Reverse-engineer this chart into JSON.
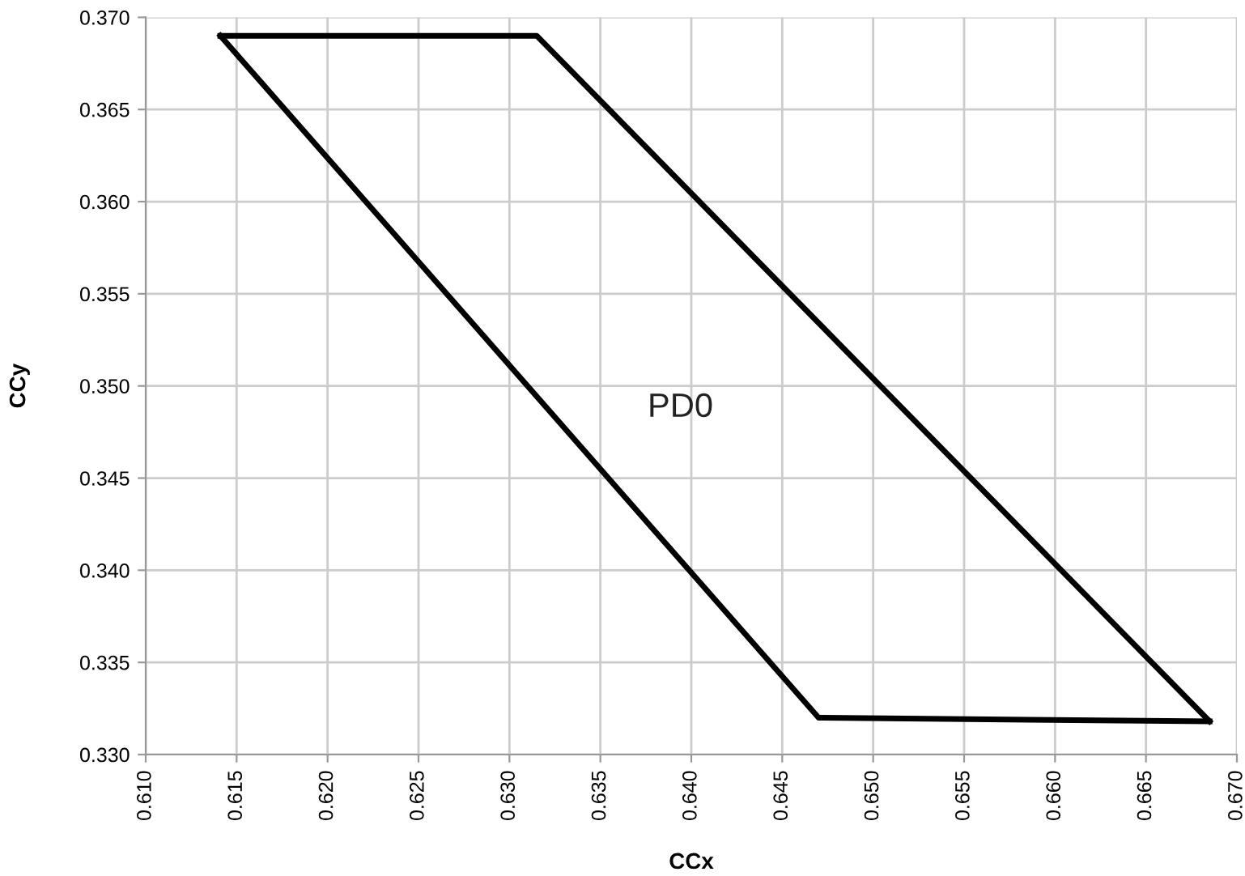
{
  "chart_data": {
    "type": "line",
    "xlabel": "CCx",
    "ylabel": "CCy",
    "series": [
      {
        "color": "#000000",
        "x": [
          0.6141,
          0.6315,
          0.6685
        ],
        "values": [
          0.369,
          0.369,
          0.3318
        ]
      },
      {
        "color": "#000000",
        "x": [
          0.6141,
          0.647,
          0.6685
        ],
        "values": [
          0.369,
          0.332,
          0.3318
        ]
      }
    ],
    "annotations": [
      "PD0"
    ],
    "xlim": [
      0.61,
      0.67
    ],
    "xticks": [
      {
        "value": 0.61,
        "label": "0.610"
      },
      {
        "value": 0.615,
        "label": "0.615"
      },
      {
        "value": 0.62,
        "label": "0.620"
      },
      {
        "value": 0.625,
        "label": "0.625"
      },
      {
        "value": 0.63,
        "label": "0.630"
      },
      {
        "value": 0.635,
        "label": "0.635"
      },
      {
        "value": 0.64,
        "label": "0.640"
      },
      {
        "value": 0.645,
        "label": "0.645"
      },
      {
        "value": 0.65,
        "label": "0.650"
      },
      {
        "value": 0.655,
        "label": "0.655"
      },
      {
        "value": 0.66,
        "label": "0.660"
      },
      {
        "value": 0.665,
        "label": "0.665"
      },
      {
        "value": 0.67,
        "label": "0.670"
      }
    ],
    "ylim": [
      0.33,
      0.37
    ],
    "yticks": [
      {
        "value": 0.33,
        "label": "0.330"
      },
      {
        "value": 0.335,
        "label": "0.335"
      },
      {
        "value": 0.34,
        "label": "0.340"
      },
      {
        "value": 0.345,
        "label": "0.345"
      },
      {
        "value": 0.35,
        "label": "0.350"
      },
      {
        "value": 0.355,
        "label": "0.355"
      },
      {
        "value": 0.36,
        "label": "0.360"
      },
      {
        "value": 0.365,
        "label": "0.365"
      },
      {
        "value": 0.37,
        "label": "0.370"
      }
    ],
    "grid": true,
    "marker": "none",
    "line_style": "solid"
  }
}
